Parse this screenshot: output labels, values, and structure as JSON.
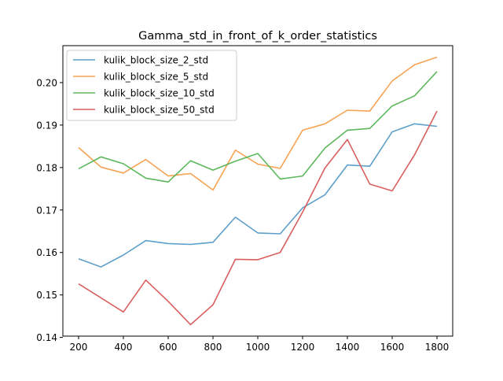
{
  "chart_data": {
    "type": "line",
    "title": "Gamma_std_in_front_of_k_order_statistics",
    "xlabel": "",
    "ylabel": "",
    "x": [
      200,
      300,
      400,
      500,
      600,
      700,
      800,
      900,
      1000,
      1100,
      1200,
      1300,
      1400,
      1500,
      1600,
      1700,
      1800
    ],
    "xlim": [
      130,
      1870
    ],
    "ylim": [
      0.1403,
      0.2087
    ],
    "xticks": [
      200,
      400,
      600,
      800,
      1000,
      1200,
      1400,
      1600,
      1800
    ],
    "xtick_labels": [
      "200",
      "400",
      "600",
      "800",
      "1000",
      "1200",
      "1400",
      "1600",
      "1800"
    ],
    "yticks": [
      0.14,
      0.15,
      0.16,
      0.17,
      0.18,
      0.19,
      0.2
    ],
    "ytick_labels": [
      "0.14",
      "0.15",
      "0.16",
      "0.17",
      "0.18",
      "0.19",
      "0.20"
    ],
    "grid": false,
    "legend_position": "upper-left",
    "series": [
      {
        "name": "kulik_block_size_2_std",
        "color": "#5c9fc9",
        "values": [
          0.1585,
          0.1566,
          0.1594,
          0.1628,
          0.1621,
          0.1619,
          0.1624,
          0.1683,
          0.1646,
          0.1644,
          0.1705,
          0.1736,
          0.1806,
          0.1803,
          0.1884,
          0.1903,
          0.1897
        ]
      },
      {
        "name": "kulik_block_size_5_std",
        "color": "#f7a354",
        "values": [
          0.1847,
          0.1801,
          0.1787,
          0.1819,
          0.178,
          0.1786,
          0.1747,
          0.1841,
          0.1808,
          0.1798,
          0.1888,
          0.1903,
          0.1935,
          0.1933,
          0.2004,
          0.2042,
          0.206
        ]
      },
      {
        "name": "kulik_block_size_10_std",
        "color": "#5db85d",
        "values": [
          0.1797,
          0.1825,
          0.1809,
          0.1775,
          0.1766,
          0.1816,
          0.1794,
          0.1815,
          0.1833,
          0.1773,
          0.178,
          0.1846,
          0.1888,
          0.1892,
          0.1945,
          0.1969,
          0.2026
        ]
      },
      {
        "name": "kulik_block_size_50_std",
        "color": "#d95f5f",
        "values": [
          0.1526,
          0.1493,
          0.146,
          0.1535,
          0.1485,
          0.143,
          0.1477,
          0.1584,
          0.1583,
          0.16,
          0.1695,
          0.1799,
          0.1866,
          0.1761,
          0.1745,
          0.183,
          0.1933
        ]
      }
    ]
  }
}
